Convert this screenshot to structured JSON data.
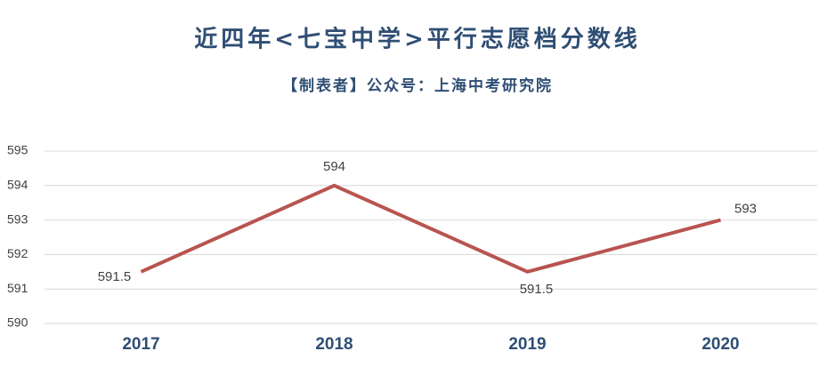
{
  "chart_data": {
    "type": "line",
    "title": "近四年<七宝中学>平行志愿档分数线",
    "subtitle": "【制表者】公众号：上海中考研究院",
    "categories": [
      "2017",
      "2018",
      "2019",
      "2020"
    ],
    "values": [
      591.5,
      594,
      591.5,
      593
    ],
    "color": "#b85450",
    "ylim": [
      590,
      595
    ],
    "yticks": [
      590,
      591,
      592,
      593,
      594,
      595
    ],
    "grid": true
  }
}
